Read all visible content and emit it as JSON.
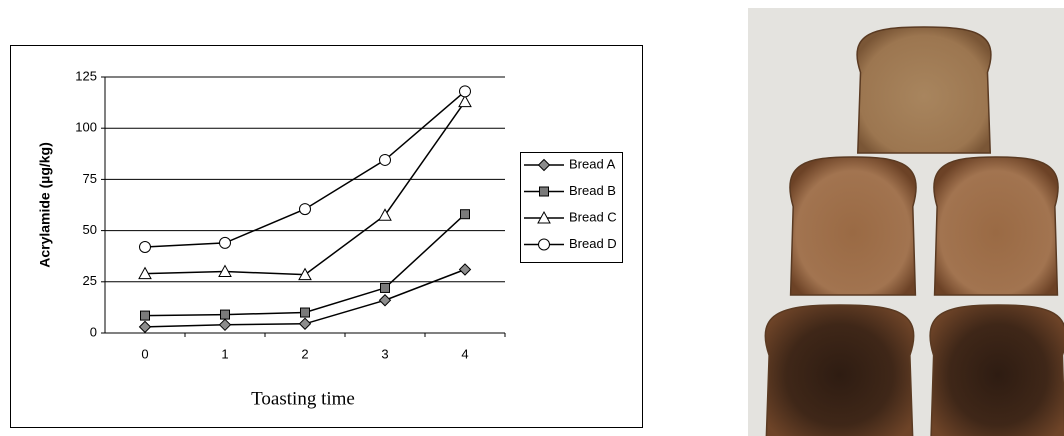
{
  "chart_data": {
    "type": "line",
    "x_label": "Toasting time",
    "y_label": "Acrylamide (µg/kg)",
    "categories": [
      "0",
      "1",
      "2",
      "3",
      "4"
    ],
    "series": [
      {
        "name": "Bread A",
        "color": "#000000",
        "marker": "diamond",
        "marker_fill": "#8c8c8c",
        "values": [
          3,
          4,
          4.5,
          16,
          31
        ]
      },
      {
        "name": "Bread B",
        "color": "#000000",
        "marker": "square",
        "marker_fill": "#7a7a7a",
        "values": [
          8.5,
          9,
          10,
          22,
          58
        ]
      },
      {
        "name": "Bread C",
        "color": "#000000",
        "marker": "triangle",
        "marker_fill": "#ffffff",
        "values": [
          29,
          30,
          28.5,
          57.5,
          113
        ]
      },
      {
        "name": "Bread D",
        "color": "#000000",
        "marker": "circle",
        "marker_fill": "#ffffff",
        "values": [
          42,
          44,
          60.5,
          84.5,
          118
        ]
      }
    ],
    "ylim": [
      0,
      125
    ],
    "yticks": [
      0,
      25,
      50,
      75,
      100,
      125
    ],
    "grid": true,
    "legend": "right"
  }
}
